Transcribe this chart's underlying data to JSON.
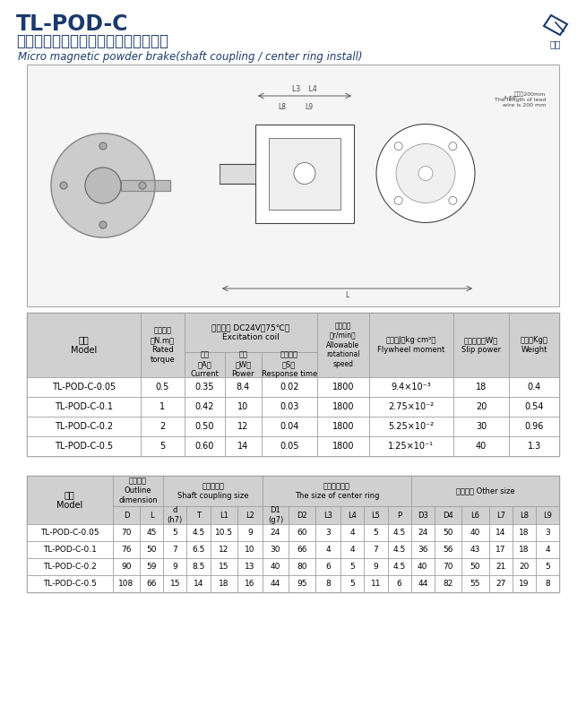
{
  "title_main": "TL-POD-C",
  "title_sub": "（軸聯結、止口支擐）微型磁粉制動器",
  "title_eng": "Micro magnetic powder brake(shaft coupling / center ring install)",
  "bg_color": "#ffffff",
  "header_bg": "#d0d0d0",
  "table1": {
    "model_header": "型號\nModel",
    "rated_header": "額定轉矩\n（N.m）\nRated\ntorque",
    "excitation_header": "激磁線圈 DC24V（75℃）\nExcitation coil",
    "excitation_subs": [
      "電流\n（A）\nCurrent",
      "功率\n（W）\nPower",
      "響應時間\n（S）\nResponse time"
    ],
    "speed_header": "許用轉速\n（r/min）\nAllowable\nrotational\nspeed",
    "flywheel_header": "飛輪距J（kg·cm²）\nFlywheel moment",
    "slip_header": "滑差功率（W）\nSlip power",
    "weight_header": "重量（Kg）\nWeight",
    "rows": [
      [
        "TL-POD-C-0.05",
        "0.5",
        "0.35",
        "8.4",
        "0.02",
        "1800",
        "9.4×10⁻³",
        "18",
        "0.4"
      ],
      [
        "TL-POD-C-0.1",
        "1",
        "0.42",
        "10",
        "0.03",
        "1800",
        "2.75×10⁻²",
        "20",
        "0.54"
      ],
      [
        "TL-POD-C-0.2",
        "2",
        "0.50",
        "12",
        "0.04",
        "1800",
        "5.25×10⁻²",
        "30",
        "0.96"
      ],
      [
        "TL-POD-C-0.5",
        "5",
        "0.60",
        "14",
        "0.05",
        "1800",
        "1.25×10⁻¹",
        "40",
        "1.3"
      ]
    ]
  },
  "table2": {
    "model_header": "型號\nModel",
    "outline_header": "外形尺寸\nOutline\ndimension",
    "shaft_header": "軸聯結尺寸\nShaft coupling size",
    "center_header": "止口支擐尺寸\nThe size of center ring",
    "other_header": "其餘尺寸 Other size",
    "sub_headers": [
      "D",
      "L",
      "d\n(h7)",
      "T",
      "L1",
      "L2",
      "D1\n(g7)",
      "D2",
      "L3",
      "L4",
      "L5",
      "P",
      "D3",
      "D4",
      "L6",
      "L7",
      "L8",
      "L9"
    ],
    "rows": [
      [
        "TL-POD-C-0.05",
        "70",
        "45",
        "5",
        "4.5",
        "10.5",
        "9",
        "24",
        "60",
        "3",
        "4",
        "5",
        "4.5",
        "24",
        "50",
        "40",
        "14",
        "18",
        "3"
      ],
      [
        "TL-POD-C-0.1",
        "76",
        "50",
        "7",
        "6.5",
        "12",
        "10",
        "30",
        "66",
        "4",
        "4",
        "7",
        "4.5",
        "36",
        "56",
        "43",
        "17",
        "18",
        "4"
      ],
      [
        "TL-POD-C-0.2",
        "90",
        "59",
        "9",
        "8.5",
        "15",
        "13",
        "40",
        "80",
        "6",
        "5",
        "9",
        "4.5",
        "40",
        "70",
        "50",
        "21",
        "20",
        "5"
      ],
      [
        "TL-POD-C-0.5",
        "108",
        "66",
        "15",
        "14",
        "18",
        "16",
        "44",
        "95",
        "8",
        "5",
        "11",
        "6",
        "44",
        "82",
        "55",
        "27",
        "19",
        "8"
      ]
    ]
  },
  "text_color": "#1a3a6b",
  "border_color": "#999999",
  "diagram_border": "#aaaaaa",
  "diagram_bg": "#f5f5f5"
}
